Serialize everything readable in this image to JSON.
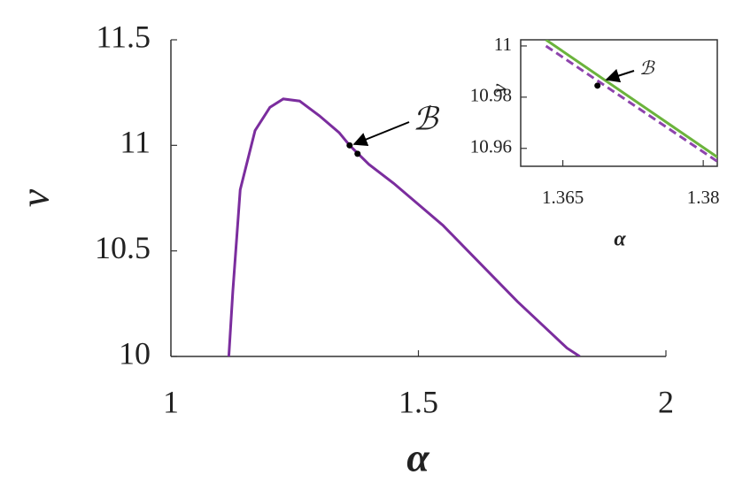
{
  "chart_data": [
    {
      "type": "line",
      "xlabel": "α",
      "ylabel": "ν",
      "xlim": [
        1,
        2
      ],
      "ylim": [
        10,
        11.5
      ],
      "xticks": [
        1,
        1.5,
        2
      ],
      "yticks": [
        10,
        10.5,
        11,
        11.5
      ],
      "grid": false,
      "box": false,
      "series": [
        {
          "color": "#7b2d9e",
          "dash": false,
          "x": [
            1.117,
            1.125,
            1.14,
            1.17,
            1.2,
            1.227,
            1.26,
            1.3,
            1.34,
            1.361,
            1.4,
            1.45,
            1.5,
            1.55,
            1.6,
            1.65,
            1.7,
            1.75,
            1.8,
            1.826
          ],
          "values": [
            10.0,
            10.306,
            10.79,
            11.07,
            11.18,
            11.22,
            11.21,
            11.14,
            11.06,
            11.0,
            10.91,
            10.82,
            10.72,
            10.62,
            10.5,
            10.38,
            10.26,
            10.15,
            10.04,
            10.0
          ]
        }
      ],
      "markers": {
        "color": "#000000",
        "x": [
          1.361,
          1.377
        ],
        "values": [
          11.0,
          10.96
        ]
      },
      "annotation": "ℬ"
    },
    {
      "type": "line",
      "xlabel": "α",
      "ylabel": "ν",
      "xlim": [
        1.3605,
        1.3815
      ],
      "ylim": [
        10.953,
        11.0024
      ],
      "xticks": [
        1.365,
        1.38
      ],
      "yticks": [
        10.96,
        10.98,
        11
      ],
      "grid": false,
      "box": true,
      "series": [
        {
          "color": "#6bb33c",
          "dash": false,
          "x": [
            1.3632,
            1.3815
          ],
          "values": [
            11.0024,
            10.9566
          ]
        },
        {
          "color": "#8e44ad",
          "dash": true,
          "x": [
            1.3632,
            1.3815
          ],
          "values": [
            11.0,
            10.9549
          ]
        }
      ],
      "markers": {
        "color": "#000000",
        "x": [
          1.3687
        ],
        "values": [
          10.9845
        ]
      },
      "annotation": "ℬ"
    }
  ]
}
